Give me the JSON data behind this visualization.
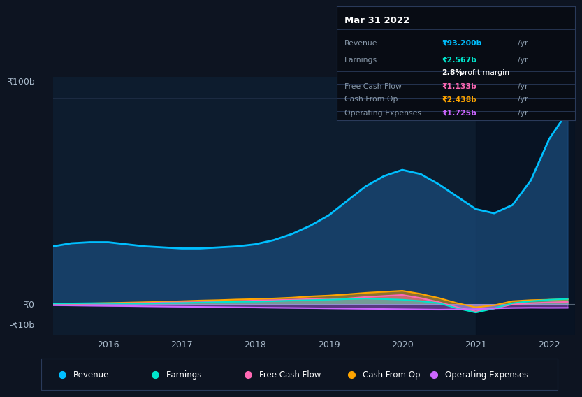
{
  "bg_color": "#0d1421",
  "plot_bg_color": "#0d1c2e",
  "grid_color": "#1e2d45",
  "zero_line_color": "#8899aa",
  "ylabel_100b": "₹100b",
  "ylabel_0": "₹0",
  "ylabel_neg10b": "-₹10b",
  "x_years": [
    2015.25,
    2015.5,
    2015.75,
    2016.0,
    2016.25,
    2016.5,
    2016.75,
    2017.0,
    2017.25,
    2017.5,
    2017.75,
    2018.0,
    2018.25,
    2018.5,
    2018.75,
    2019.0,
    2019.25,
    2019.5,
    2019.75,
    2020.0,
    2020.25,
    2020.5,
    2020.75,
    2021.0,
    2021.25,
    2021.5,
    2021.75,
    2022.0,
    2022.25
  ],
  "revenue": [
    28,
    29.5,
    30,
    30,
    29,
    28,
    27.5,
    27,
    27,
    27.5,
    28,
    29,
    31,
    34,
    38,
    43,
    50,
    57,
    62,
    65,
    63,
    58,
    52,
    46,
    44,
    48,
    60,
    80,
    93.2
  ],
  "earnings": [
    0.3,
    0.4,
    0.5,
    0.5,
    0.4,
    0.3,
    0.5,
    0.6,
    0.8,
    1.0,
    1.2,
    1.3,
    1.5,
    1.8,
    2.0,
    2.2,
    2.5,
    2.8,
    2.5,
    2.2,
    1.5,
    0.5,
    -2.0,
    -4.0,
    -2.0,
    0.5,
    1.5,
    2.2,
    2.567
  ],
  "free_cash_flow": [
    0.1,
    0.2,
    0.3,
    0.4,
    0.5,
    0.6,
    0.8,
    0.9,
    1.0,
    1.2,
    1.5,
    1.8,
    2.0,
    2.2,
    2.5,
    2.3,
    2.8,
    3.5,
    4.0,
    4.5,
    3.0,
    1.0,
    -1.5,
    -3.5,
    -2.0,
    0.0,
    0.5,
    0.9,
    1.133
  ],
  "cash_from_op": [
    0.2,
    0.3,
    0.4,
    0.6,
    0.8,
    1.0,
    1.2,
    1.5,
    1.8,
    2.0,
    2.3,
    2.5,
    2.8,
    3.2,
    3.8,
    4.2,
    4.8,
    5.5,
    6.0,
    6.5,
    5.0,
    3.0,
    0.5,
    -1.5,
    -0.5,
    1.5,
    2.0,
    2.2,
    2.438
  ],
  "operating_expenses": [
    -0.5,
    -0.6,
    -0.7,
    -0.8,
    -0.9,
    -1.0,
    -1.1,
    -1.2,
    -1.3,
    -1.4,
    -1.5,
    -1.6,
    -1.7,
    -1.8,
    -1.9,
    -2.0,
    -2.1,
    -2.2,
    -2.3,
    -2.4,
    -2.5,
    -2.6,
    -2.5,
    -2.4,
    -2.0,
    -1.8,
    -1.7,
    -1.75,
    -1.725
  ],
  "revenue_color": "#00bfff",
  "revenue_fill_color": "#1a4a7a",
  "earnings_color": "#00e5cc",
  "free_cash_flow_color": "#ff69b4",
  "cash_from_op_color": "#ffa500",
  "operating_expenses_color": "#cc66ff",
  "tooltip_bg": "#080c14",
  "tooltip_border": "#2a3a5a",
  "tooltip_title": "Mar 31 2022",
  "legend_items": [
    {
      "label": "Revenue",
      "color": "#00bfff"
    },
    {
      "label": "Earnings",
      "color": "#00e5cc"
    },
    {
      "label": "Free Cash Flow",
      "color": "#ff69b4"
    },
    {
      "label": "Cash From Op",
      "color": "#ffa500"
    },
    {
      "label": "Operating Expenses",
      "color": "#cc66ff"
    }
  ],
  "ylim": [
    -15,
    110
  ],
  "xlim": [
    2015.25,
    2022.35
  ],
  "shade_start_x": 2021.0,
  "shade_end_x": 2022.35,
  "x_ticks": [
    2016,
    2017,
    2018,
    2019,
    2020,
    2021,
    2022
  ]
}
